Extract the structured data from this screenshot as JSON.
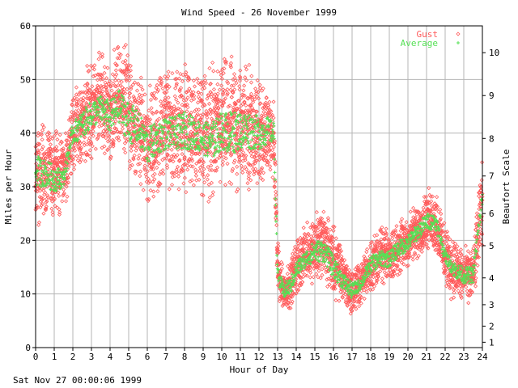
{
  "footer": {
    "timestamp": "Sat Nov 27 00:00:06 1999"
  },
  "chart_data": {
    "type": "scatter",
    "title": "Wind Speed - 26 November 1999",
    "xlabel": "Hour of Day",
    "ylabel": "Miles per Hour",
    "y2label": "Beaufort Scale",
    "xlim": [
      0,
      24
    ],
    "ylim": [
      0,
      60
    ],
    "x_ticks": [
      "0",
      "1",
      "2",
      "3",
      "4",
      "5",
      "6",
      "7",
      "8",
      "9",
      "10",
      "11",
      "12",
      "13",
      "14",
      "15",
      "16",
      "17",
      "18",
      "19",
      "20",
      "21",
      "22",
      "23",
      "24"
    ],
    "y_ticks": [
      "0",
      "10",
      "20",
      "30",
      "40",
      "50",
      "60"
    ],
    "beaufort_ticks": [
      {
        "label": "1",
        "mph": 1
      },
      {
        "label": "2",
        "mph": 4
      },
      {
        "label": "3",
        "mph": 8
      },
      {
        "label": "4",
        "mph": 13
      },
      {
        "label": "5",
        "mph": 19
      },
      {
        "label": "6",
        "mph": 25
      },
      {
        "label": "7",
        "mph": 32
      },
      {
        "label": "8",
        "mph": 39
      },
      {
        "label": "9",
        "mph": 47
      },
      {
        "label": "10",
        "mph": 55
      }
    ],
    "grid": true,
    "legend_position": "top-right",
    "series": [
      {
        "name": "Gust",
        "marker": "diamond",
        "color": "#ff5a5a",
        "band": [
          [
            0,
            22,
            40
          ],
          [
            0.5,
            26,
            41
          ],
          [
            1,
            25,
            40
          ],
          [
            1.5,
            26,
            38
          ],
          [
            2,
            33,
            46
          ],
          [
            2.5,
            35,
            50
          ],
          [
            3,
            36,
            52
          ],
          [
            3.5,
            38,
            54
          ],
          [
            4,
            35,
            53
          ],
          [
            4.5,
            38,
            56
          ],
          [
            5,
            33,
            54
          ],
          [
            5.5,
            34,
            50
          ],
          [
            6,
            27,
            47
          ],
          [
            6.5,
            30,
            49
          ],
          [
            7,
            32,
            52
          ],
          [
            7.5,
            31,
            50
          ],
          [
            8,
            30,
            52
          ],
          [
            8.5,
            31,
            50
          ],
          [
            9,
            30,
            50
          ],
          [
            9.5,
            28,
            51
          ],
          [
            10,
            31,
            52
          ],
          [
            10.5,
            29,
            53
          ],
          [
            11,
            31,
            52
          ],
          [
            11.5,
            31,
            52
          ],
          [
            12,
            30,
            49
          ],
          [
            12.5,
            34,
            46
          ],
          [
            12.8,
            32,
            45
          ],
          [
            13,
            10,
            20
          ],
          [
            13.3,
            7,
            14
          ],
          [
            13.7,
            8,
            16
          ],
          [
            14,
            10,
            20
          ],
          [
            14.5,
            13,
            22
          ],
          [
            15,
            13,
            25
          ],
          [
            15.5,
            14,
            25
          ],
          [
            16,
            10,
            22
          ],
          [
            16.5,
            9,
            18
          ],
          [
            17,
            6,
            14
          ],
          [
            17.5,
            9,
            16
          ],
          [
            18,
            11,
            20
          ],
          [
            18.5,
            12,
            22
          ],
          [
            19,
            13,
            21
          ],
          [
            19.5,
            14,
            23
          ],
          [
            20,
            15,
            25
          ],
          [
            20.5,
            17,
            26
          ],
          [
            21,
            19,
            29
          ],
          [
            21.5,
            18,
            29
          ],
          [
            22,
            12,
            22
          ],
          [
            22.5,
            9,
            20
          ],
          [
            23,
            9,
            18
          ],
          [
            23.5,
            9,
            18
          ],
          [
            24,
            20,
            35
          ]
        ]
      },
      {
        "name": "Average",
        "marker": "plus",
        "color": "#55e055",
        "band": [
          [
            0,
            30,
            36
          ],
          [
            0.5,
            30,
            35
          ],
          [
            1,
            29,
            34
          ],
          [
            1.5,
            30,
            33
          ],
          [
            2,
            38,
            42
          ],
          [
            2.5,
            39,
            44
          ],
          [
            3,
            41,
            46
          ],
          [
            3.5,
            42,
            47
          ],
          [
            4,
            40,
            46
          ],
          [
            4.5,
            42,
            48
          ],
          [
            5,
            38,
            46
          ],
          [
            5.5,
            38,
            44
          ],
          [
            6,
            34,
            41
          ],
          [
            6.5,
            36,
            42
          ],
          [
            7,
            37,
            43
          ],
          [
            7.5,
            37,
            43
          ],
          [
            8,
            37,
            44
          ],
          [
            8.5,
            37,
            43
          ],
          [
            9,
            36,
            42
          ],
          [
            9.5,
            35,
            42
          ],
          [
            10,
            37,
            44
          ],
          [
            10.5,
            36,
            44
          ],
          [
            11,
            37,
            44
          ],
          [
            11.5,
            37,
            44
          ],
          [
            12,
            37,
            43
          ],
          [
            12.5,
            38,
            43
          ],
          [
            12.8,
            38,
            42
          ],
          [
            13,
            12,
            15
          ],
          [
            13.3,
            9,
            12
          ],
          [
            13.7,
            10,
            13
          ],
          [
            14,
            13,
            16
          ],
          [
            14.5,
            15,
            18
          ],
          [
            15,
            16,
            20
          ],
          [
            15.5,
            16,
            20
          ],
          [
            16,
            13,
            17
          ],
          [
            16.5,
            11,
            14
          ],
          [
            17,
            9,
            12
          ],
          [
            17.5,
            11,
            13
          ],
          [
            18,
            14,
            17
          ],
          [
            18.5,
            15,
            18
          ],
          [
            19,
            15,
            18
          ],
          [
            19.5,
            17,
            20
          ],
          [
            20,
            18,
            21
          ],
          [
            20.5,
            20,
            23
          ],
          [
            21,
            22,
            25
          ],
          [
            21.5,
            22,
            25
          ],
          [
            22,
            16,
            18
          ],
          [
            22.5,
            13,
            16
          ],
          [
            23,
            12,
            15
          ],
          [
            23.5,
            12,
            15
          ],
          [
            24,
            26,
            30
          ]
        ]
      }
    ]
  }
}
